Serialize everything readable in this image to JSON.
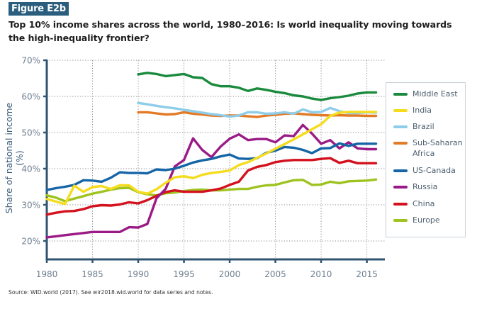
{
  "figure_label": "Figure E2b",
  "title": "Top 10% income shares across the world, 1980–2016: Is world inequality moving towards the high-inequality frontier?",
  "source": "Source: WID.world (2017). See wir2018.wid.world for data series and notes.",
  "chart_data": {
    "type": "line",
    "title": "Top 10% income shares across the world, 1980–2016: Is world inequality moving towards the high-inequality frontier?",
    "xlabel": "",
    "ylabel": "Share of national income (%)",
    "xlim": [
      1980,
      2016
    ],
    "ylim": [
      20,
      70
    ],
    "x_ticks": [
      1980,
      1985,
      1990,
      1995,
      2000,
      2005,
      2010,
      2015
    ],
    "y_ticks": [
      20,
      30,
      40,
      50,
      60,
      70
    ],
    "y_tick_labels": [
      "20%",
      "30%",
      "40%",
      "50%",
      "60%",
      "70%"
    ],
    "grid": "dotted",
    "legend_position": "right",
    "series": [
      {
        "name": "Middle East",
        "color": "#1a8a3c",
        "start": 1990,
        "values": [
          66.1,
          66.5,
          66.2,
          65.6,
          65.9,
          66.2,
          65.3,
          65.1,
          63.4,
          62.8,
          62.8,
          62.4,
          61.5,
          62.2,
          61.8,
          61.3,
          60.9,
          60.3,
          60.0,
          59.4,
          59.0,
          59.5,
          59.8,
          60.2,
          60.8,
          61.1,
          61.1
        ]
      },
      {
        "name": "India",
        "color": "#f5dc1e",
        "start": 1980,
        "values": [
          31.6,
          30.9,
          30.2,
          35.3,
          33.6,
          34.9,
          35.2,
          34.4,
          35.4,
          35.4,
          33.6,
          33.1,
          34.3,
          36.1,
          37.6,
          37.9,
          37.4,
          38.3,
          38.8,
          39.1,
          39.5,
          41.0,
          41.8,
          43.0,
          44.2,
          45.5,
          46.8,
          48.1,
          49.5,
          50.9,
          52.3,
          54.6,
          55.5,
          55.7,
          55.7,
          55.7,
          55.7
        ]
      },
      {
        "name": "Brazil",
        "color": "#8ecde9",
        "start": 1990,
        "values": [
          58.2,
          57.8,
          57.4,
          57.0,
          56.7,
          56.3,
          55.9,
          55.5,
          55.1,
          54.8,
          54.4,
          54.7,
          55.6,
          55.6,
          55.2,
          55.3,
          55.6,
          55.2,
          56.4,
          55.6,
          55.7,
          56.8,
          55.9,
          55.4,
          55.4,
          55.6,
          55.5
        ]
      },
      {
        "name": "Sub-Saharan Africa",
        "color": "#e27a26",
        "start": 1990,
        "values": [
          55.6,
          55.6,
          55.3,
          55.0,
          55.1,
          55.6,
          55.2,
          55.0,
          54.7,
          54.6,
          54.7,
          54.7,
          54.5,
          54.3,
          54.7,
          54.9,
          55.2,
          55.3,
          55.1,
          54.9,
          54.8,
          54.7,
          54.8,
          54.7,
          54.7,
          54.6,
          54.6
        ]
      },
      {
        "name": "US-Canada",
        "color": "#1565a7",
        "start": 1980,
        "values": [
          34.1,
          34.6,
          35.0,
          35.5,
          36.8,
          36.7,
          36.4,
          37.5,
          39.0,
          38.8,
          38.8,
          38.7,
          39.8,
          39.6,
          40.0,
          40.8,
          41.7,
          42.3,
          42.7,
          43.4,
          43.9,
          42.8,
          42.7,
          42.9,
          44.4,
          45.0,
          46.0,
          45.8,
          45.2,
          44.3,
          45.6,
          45.7,
          47.0,
          46.3,
          46.9,
          46.9,
          46.9
        ]
      },
      {
        "name": "Russia",
        "color": "#9b1b86",
        "start": 1980,
        "values": [
          21.0,
          21.3,
          21.6,
          21.9,
          22.2,
          22.5,
          22.5,
          22.5,
          22.5,
          23.8,
          23.7,
          24.7,
          31.8,
          34.4,
          40.6,
          42.4,
          48.4,
          45.2,
          43.2,
          46.1,
          48.3,
          49.5,
          47.9,
          48.2,
          48.2,
          47.3,
          49.2,
          49.0,
          52.1,
          49.7,
          46.9,
          47.9,
          45.6,
          47.3,
          45.6,
          45.4,
          45.4
        ]
      },
      {
        "name": "China",
        "color": "#d4111e",
        "start": 1980,
        "values": [
          27.3,
          27.8,
          28.2,
          28.3,
          28.8,
          29.6,
          29.9,
          29.8,
          30.1,
          30.7,
          30.4,
          31.3,
          32.5,
          33.5,
          34.0,
          33.6,
          33.6,
          33.6,
          34.0,
          34.5,
          35.5,
          36.4,
          39.5,
          40.5,
          41.0,
          41.8,
          42.2,
          42.4,
          42.4,
          42.4,
          42.7,
          42.9,
          41.6,
          42.2,
          41.5,
          41.5,
          41.5
        ]
      },
      {
        "name": "Europe",
        "color": "#9ec31f",
        "start": 1980,
        "values": [
          32.6,
          32.0,
          31.0,
          31.7,
          32.4,
          33.1,
          33.6,
          34.2,
          34.6,
          34.7,
          33.5,
          32.9,
          32.6,
          33.2,
          33.4,
          33.8,
          34.1,
          34.2,
          34.0,
          34.0,
          34.2,
          34.4,
          34.4,
          35.0,
          35.4,
          35.5,
          36.2,
          36.8,
          36.9,
          35.5,
          35.6,
          36.4,
          36.0,
          36.5,
          36.6,
          36.7,
          37.0
        ]
      }
    ]
  },
  "legend": [
    {
      "label": "Middle East",
      "color": "#1a8a3c"
    },
    {
      "label": "India",
      "color": "#f5dc1e"
    },
    {
      "label": "Brazil",
      "color": "#8ecde9"
    },
    {
      "label": "Sub-Saharan Africa",
      "color": "#e27a26"
    },
    {
      "label": "US-Canada",
      "color": "#1565a7"
    },
    {
      "label": "Russia",
      "color": "#9b1b86"
    },
    {
      "label": "China",
      "color": "#d4111e"
    },
    {
      "label": "Europe",
      "color": "#9ec31f"
    }
  ]
}
